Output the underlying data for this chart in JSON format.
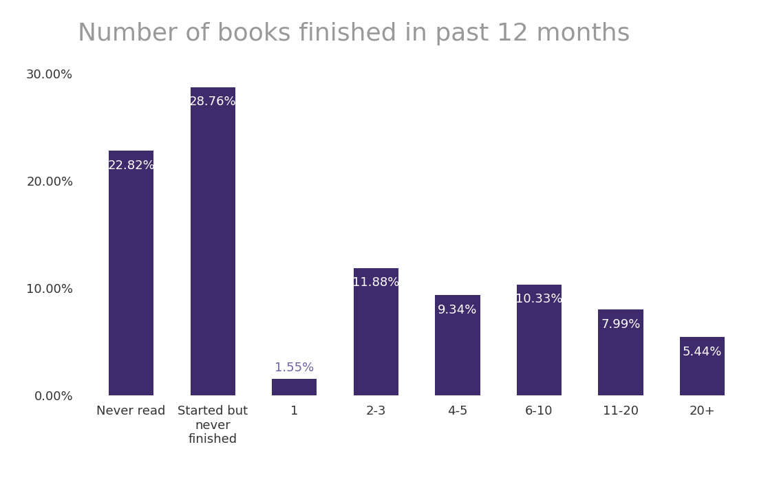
{
  "title": "Number of books finished in past 12 months",
  "categories": [
    "Never read",
    "Started but\nnever\nfinished",
    "1",
    "2-3",
    "4-5",
    "6-10",
    "11-20",
    "20+"
  ],
  "values": [
    22.82,
    28.76,
    1.55,
    11.88,
    9.34,
    10.33,
    7.99,
    5.44
  ],
  "bar_color": "#3d2b6b",
  "label_color_inside": "#ffffff",
  "label_color_outside": "#7060a8",
  "title_color": "#999999",
  "ytick_color": "#333333",
  "xtick_color": "#333333",
  "ylim": [
    0,
    31.5
  ],
  "yticks": [
    0,
    10,
    20,
    30
  ],
  "ytick_labels": [
    "0.00%",
    "10.00%",
    "20.00%",
    "30.00%"
  ],
  "background_color": "#ffffff",
  "title_fontsize": 26,
  "label_fontsize": 13,
  "tick_fontsize": 13,
  "bar_width": 0.55
}
